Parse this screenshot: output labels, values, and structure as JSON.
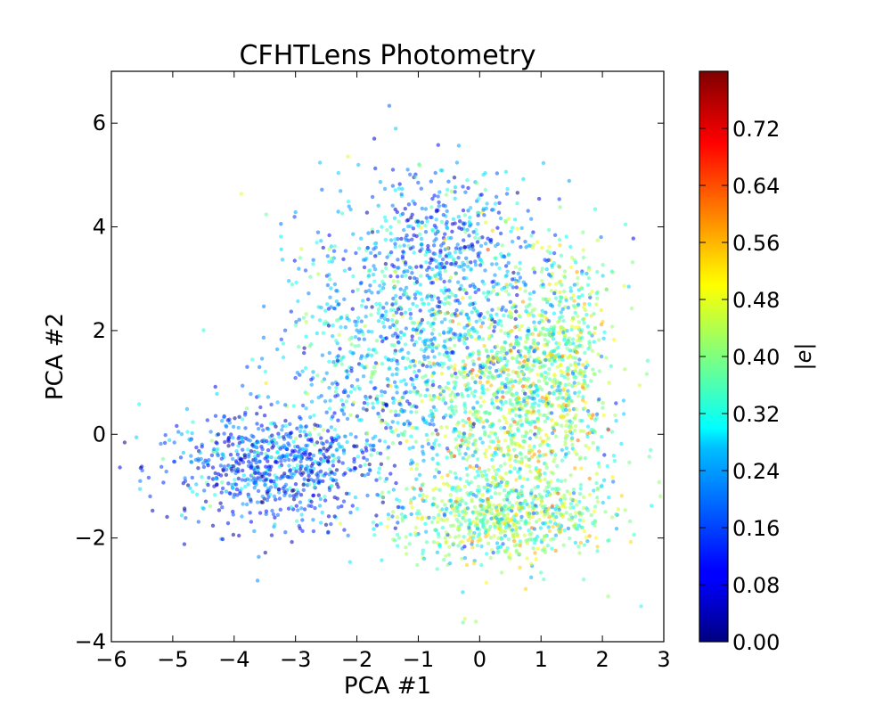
{
  "chart_data": {
    "type": "scatter",
    "title": "CFHTLens Photometry",
    "xlabel": "PCA #1",
    "ylabel": "PCA #2",
    "xlim": [
      -6,
      3
    ],
    "ylim": [
      -4,
      7
    ],
    "xticks": [
      -6,
      -5,
      -4,
      -3,
      -2,
      -1,
      0,
      1,
      2,
      3
    ],
    "xtick_labels": [
      "−6",
      "−5",
      "−4",
      "−3",
      "−2",
      "−1",
      "0",
      "1",
      "2",
      "3"
    ],
    "yticks": [
      -4,
      -2,
      0,
      2,
      4,
      6
    ],
    "ytick_labels": [
      "−4",
      "−2",
      "0",
      "2",
      "4",
      "6"
    ],
    "grid": false,
    "colorbar": {
      "label": "|e|",
      "colormap": "jet",
      "range": [
        0.0,
        0.8
      ],
      "ticks": [
        0.0,
        0.08,
        0.16,
        0.24,
        0.32,
        0.4,
        0.48,
        0.56,
        0.64,
        0.72
      ],
      "tick_labels": [
        "0.00",
        "0.08",
        "0.16",
        "0.24",
        "0.32",
        "0.40",
        "0.48",
        "0.56",
        "0.64",
        "0.72"
      ]
    },
    "point_cloud": {
      "description_of_distribution": "dense cloud of galaxies; low |e| (blue) concentrated on the left lobe around PCA #1 ≈ −3.5, PCA #2 ≈ −0.5 and the upper region; higher |e| (green/orange) on the right side near PCA #1 ≈ 0.5–1.5",
      "regions": [
        {
          "cx": -3.3,
          "cy": -0.6,
          "sx": 0.9,
          "sy": 0.55,
          "weight": 0.18,
          "e_mean": 0.16
        },
        {
          "cx": -1.3,
          "cy": 1.6,
          "sx": 1.0,
          "sy": 1.3,
          "weight": 0.22,
          "e_mean": 0.26
        },
        {
          "cx": -0.5,
          "cy": 3.6,
          "sx": 0.8,
          "sy": 0.8,
          "weight": 0.12,
          "e_mean": 0.2
        },
        {
          "cx": 0.6,
          "cy": 0.4,
          "sx": 0.75,
          "sy": 1.3,
          "weight": 0.24,
          "e_mean": 0.4
        },
        {
          "cx": 0.3,
          "cy": -1.6,
          "sx": 0.9,
          "sy": 0.4,
          "weight": 0.14,
          "e_mean": 0.38
        },
        {
          "cx": 1.3,
          "cy": 1.8,
          "sx": 0.45,
          "sy": 1.0,
          "weight": 0.1,
          "e_mean": 0.38
        }
      ]
    }
  }
}
